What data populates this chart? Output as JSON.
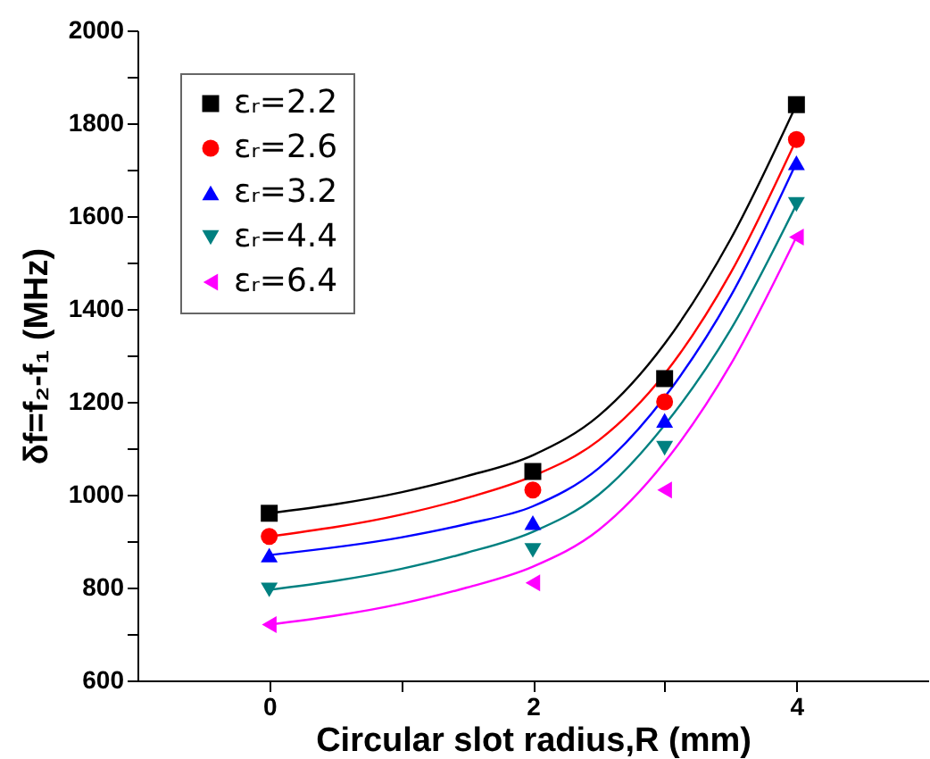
{
  "chart_data": {
    "type": "scatter",
    "xlabel": "Circular slot radius,R (mm)",
    "ylabel": "δf=f₂-f₁ (MHz)",
    "x": [
      0,
      2,
      3,
      4
    ],
    "xlim": [
      -1,
      5
    ],
    "xticks": [
      0,
      {
        "value": 1,
        "label": null
      },
      2,
      {
        "value": 3,
        "label": null
      },
      4
    ],
    "ylim": [
      600,
      2000
    ],
    "yticks": [
      600,
      {
        "value": 700,
        "label": null
      },
      800,
      {
        "value": 900,
        "label": null
      },
      1000,
      {
        "value": 1100,
        "label": null
      },
      1200,
      {
        "value": 1300,
        "label": null
      },
      1400,
      {
        "value": 1500,
        "label": null
      },
      1600,
      {
        "value": 1700,
        "label": null
      },
      1800,
      {
        "value": 1900,
        "label": null
      },
      2000
    ],
    "grid": false,
    "legend": "top left",
    "series": [
      {
        "name": "εᵣ=2.2",
        "color": "#000000",
        "marker": "square",
        "values": [
          960,
          1050,
          1250,
          1840
        ]
      },
      {
        "name": "εᵣ=2.6",
        "color": "#ff0000",
        "marker": "circle",
        "values": [
          910,
          1010,
          1200,
          1765
        ]
      },
      {
        "name": "εᵣ=3.2",
        "color": "#0000ff",
        "marker": "triangle",
        "values": [
          870,
          940,
          1160,
          1715
        ]
      },
      {
        "name": "εᵣ=4.4",
        "color": "#008080",
        "marker": "triangle-down",
        "values": [
          795,
          880,
          1100,
          1625
        ]
      },
      {
        "name": "εᵣ=6.4",
        "color": "#ff00ff",
        "marker": "triangle-left",
        "values": [
          720,
          810,
          1010,
          1555
        ]
      },
      {
        "type": "line",
        "color": "#000000",
        "x": [
          0,
          1,
          1.5,
          2,
          2.5,
          3,
          3.5,
          4
        ],
        "values": [
          960,
          1005,
          1040,
          1085,
          1170,
          1325,
          1550,
          1840
        ]
      },
      {
        "type": "line",
        "color": "#ff0000",
        "x": [
          0,
          1,
          1.5,
          2,
          2.5,
          3,
          3.5,
          4
        ],
        "values": [
          910,
          957,
          993,
          1040,
          1117,
          1260,
          1477,
          1765
        ]
      },
      {
        "type": "line",
        "color": "#0000ff",
        "x": [
          0,
          1,
          1.5,
          2,
          2.5,
          3,
          3.5,
          4
        ],
        "values": [
          870,
          908,
          937,
          975,
          1057,
          1210,
          1427,
          1715
        ]
      },
      {
        "type": "line",
        "color": "#008080",
        "x": [
          0,
          1,
          1.5,
          2,
          2.5,
          3,
          3.5,
          4
        ],
        "values": [
          795,
          840,
          875,
          920,
          1000,
          1150,
          1355,
          1625
        ]
      },
      {
        "type": "line",
        "color": "#ff00ff",
        "x": [
          0,
          1,
          1.5,
          2,
          2.5,
          3,
          3.5,
          4
        ],
        "values": [
          720,
          765,
          800,
          845,
          924,
          1070,
          1280,
          1555
        ]
      }
    ]
  }
}
